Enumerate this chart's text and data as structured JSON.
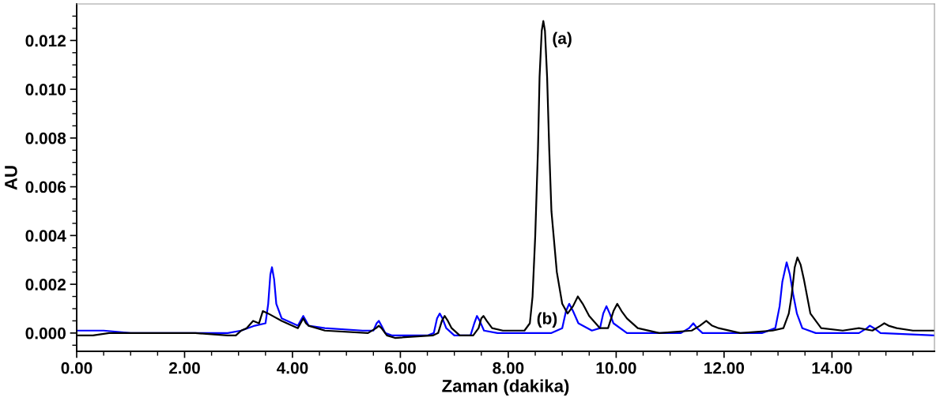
{
  "chart_data": {
    "type": "line",
    "xlabel": "Zaman (dakika)",
    "ylabel": "AU",
    "xlim": [
      0,
      15.9
    ],
    "ylim": [
      -0.00075,
      0.0135
    ],
    "xticks": [
      {
        "value": 0,
        "label": "0.00"
      },
      {
        "value": 2,
        "label": "2.00"
      },
      {
        "value": 4,
        "label": "4.00"
      },
      {
        "value": 6,
        "label": "6.00"
      },
      {
        "value": 8,
        "label": "8.00"
      },
      {
        "value": 10,
        "label": "10.00"
      },
      {
        "value": 12,
        "label": "12.00"
      },
      {
        "value": 14,
        "label": "14.00"
      }
    ],
    "yticks": [
      {
        "value": 0,
        "label": "0.000"
      },
      {
        "value": 0.002,
        "label": "0.002"
      },
      {
        "value": 0.004,
        "label": "0.004"
      },
      {
        "value": 0.006,
        "label": "0.006"
      },
      {
        "value": 0.008,
        "label": "0.008"
      },
      {
        "value": 0.01,
        "label": "0.010"
      },
      {
        "value": 0.012,
        "label": "0.012"
      }
    ],
    "grid": false,
    "marker": "none",
    "line_style": "solid",
    "annotations": [
      {
        "text": "(a)",
        "x": 8.65,
        "y": 0.0128
      },
      {
        "text": "(b)",
        "x": 8.8,
        "y": 0.0
      }
    ],
    "series": [
      {
        "color": "#0000ff",
        "x": [
          0,
          0.5,
          1.0,
          2.0,
          2.8,
          3.05,
          3.3,
          3.5,
          3.55,
          3.59,
          3.62,
          3.66,
          3.7,
          3.8,
          4.1,
          4.15,
          4.2,
          4.25,
          4.3,
          4.6,
          5.3,
          5.5,
          5.56,
          5.6,
          5.65,
          5.72,
          5.85,
          6.5,
          6.62,
          6.68,
          6.73,
          6.78,
          6.85,
          7.0,
          7.3,
          7.37,
          7.42,
          7.47,
          7.55,
          7.8,
          8.8,
          9.0,
          9.07,
          9.13,
          9.2,
          9.3,
          9.55,
          9.7,
          9.76,
          9.82,
          9.88,
          9.95,
          10.2,
          11.2,
          11.35,
          11.43,
          11.5,
          11.6,
          12.7,
          12.95,
          13.03,
          13.08,
          13.16,
          13.22,
          13.28,
          13.35,
          13.45,
          13.7,
          14.5,
          14.65,
          14.7,
          14.78,
          14.9,
          15.9
        ],
        "values": [
          0.0001,
          0.0001,
          0.0,
          0.0,
          0.0,
          0.0001,
          0.0003,
          0.0004,
          0.0012,
          0.0024,
          0.0027,
          0.0022,
          0.0012,
          0.0006,
          0.0003,
          0.0005,
          0.0007,
          0.0005,
          0.0003,
          0.0002,
          0.0001,
          0.0001,
          0.0004,
          0.0005,
          0.0003,
          0.0,
          -0.0001,
          -0.0001,
          0.0,
          0.0006,
          0.0008,
          0.0006,
          0.0002,
          -0.0001,
          -0.0001,
          0.0004,
          0.0007,
          0.0005,
          0.0001,
          0.0,
          0.0,
          0.0002,
          0.0009,
          0.0012,
          0.0009,
          0.0004,
          0.0001,
          0.0002,
          0.0008,
          0.0011,
          0.0008,
          0.0004,
          0.0,
          0.0,
          0.0002,
          0.0004,
          0.0002,
          0.0,
          0.0,
          0.0002,
          0.0011,
          0.0021,
          0.0029,
          0.0024,
          0.0016,
          0.0008,
          0.0002,
          0.0,
          0.0,
          0.0002,
          0.0003,
          0.0002,
          0.0,
          -0.0001
        ]
      },
      {
        "color": "#000000",
        "x": [
          0,
          0.3,
          0.6,
          1.5,
          2.2,
          2.8,
          2.95,
          3.05,
          3.15,
          3.27,
          3.38,
          3.45,
          3.55,
          3.8,
          4.1,
          4.15,
          4.2,
          4.25,
          4.3,
          4.6,
          5.4,
          5.55,
          5.6,
          5.65,
          5.75,
          5.9,
          6.6,
          6.7,
          6.77,
          6.82,
          6.88,
          6.95,
          7.1,
          7.35,
          7.45,
          7.5,
          7.54,
          7.6,
          7.7,
          7.9,
          8.3,
          8.4,
          8.45,
          8.5,
          8.55,
          8.58,
          8.62,
          8.65,
          8.68,
          8.72,
          8.76,
          8.8,
          8.9,
          9.0,
          9.1,
          9.2,
          9.29,
          9.38,
          9.5,
          9.7,
          9.85,
          9.95,
          10.02,
          10.1,
          10.2,
          10.4,
          10.8,
          11.4,
          11.55,
          11.67,
          11.78,
          11.9,
          12.3,
          12.9,
          13.1,
          13.2,
          13.25,
          13.31,
          13.36,
          13.42,
          13.48,
          13.6,
          13.8,
          14.2,
          14.5,
          14.75,
          14.9,
          14.97,
          15.05,
          15.2,
          15.5,
          15.9
        ],
        "values": [
          -0.0001,
          -0.0001,
          0.0,
          0.0,
          0.0,
          -0.0001,
          -0.0001,
          0.0001,
          0.0002,
          0.0005,
          0.0004,
          0.0009,
          0.0008,
          0.0005,
          0.0002,
          0.0004,
          0.0006,
          0.0004,
          0.0003,
          0.0001,
          0.0,
          0.0002,
          0.0003,
          0.0002,
          -0.0001,
          -0.0002,
          -0.0001,
          0.0,
          0.0005,
          0.0007,
          0.0005,
          0.0002,
          -0.0001,
          -0.0001,
          0.0002,
          0.0006,
          0.0007,
          0.0005,
          0.0002,
          0.0001,
          0.0001,
          0.0004,
          0.0015,
          0.004,
          0.0075,
          0.0105,
          0.0124,
          0.0128,
          0.0124,
          0.0105,
          0.0075,
          0.005,
          0.0025,
          0.0012,
          0.0008,
          0.0011,
          0.0015,
          0.0012,
          0.0007,
          0.0002,
          0.0002,
          0.0009,
          0.0012,
          0.0009,
          0.0006,
          0.0002,
          0.0,
          0.0001,
          0.0003,
          0.0005,
          0.0003,
          0.0002,
          0.0,
          0.0001,
          0.0002,
          0.0008,
          0.0015,
          0.0027,
          0.0031,
          0.0028,
          0.0022,
          0.0008,
          0.0002,
          0.0001,
          0.0002,
          0.0001,
          0.0003,
          0.0004,
          0.0003,
          0.0002,
          0.0001,
          0.0001
        ]
      }
    ]
  }
}
